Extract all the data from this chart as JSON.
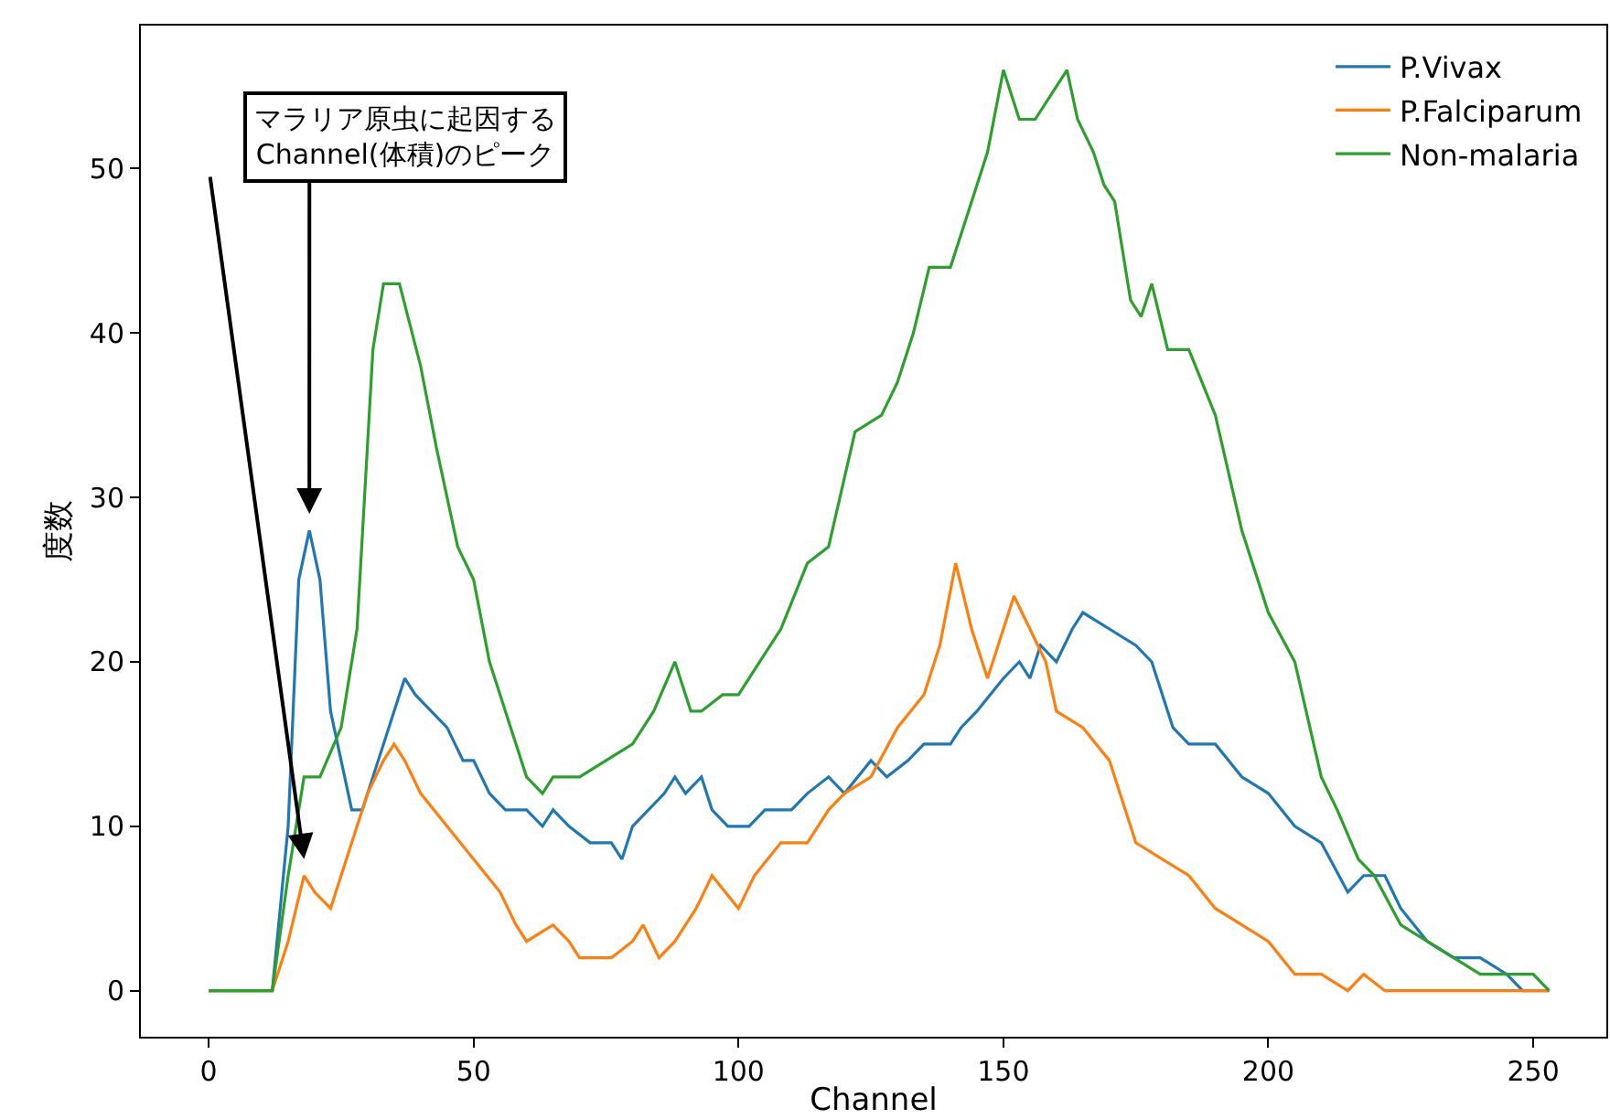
{
  "chart_data": {
    "type": "line",
    "xlabel": "Channel",
    "ylabel": "度数",
    "xlim": [
      -12.8,
      263.8
    ],
    "ylim": [
      -2.8,
      58.7
    ],
    "xticks": [
      0,
      50,
      100,
      150,
      200,
      250
    ],
    "yticks": [
      0,
      10,
      20,
      30,
      40,
      50
    ],
    "legend": "top right",
    "annotations": [
      "マラリア原虫に起因する\nChannel(体積)のピーク"
    ],
    "series": [
      {
        "name": "P.Vivax",
        "color": "#1f77b4",
        "x": [
          0,
          12,
          15,
          17,
          19,
          21,
          23,
          25,
          27,
          29,
          32,
          35,
          37,
          39,
          42,
          45,
          48,
          50,
          53,
          56,
          60,
          63,
          65,
          68,
          72,
          76,
          78,
          80,
          83,
          86,
          88,
          90,
          93,
          95,
          98,
          102,
          105,
          110,
          113,
          117,
          120,
          125,
          128,
          132,
          135,
          140,
          142,
          145,
          150,
          153,
          155,
          157,
          160,
          163,
          165,
          170,
          175,
          178,
          182,
          185,
          190,
          195,
          200,
          205,
          210,
          215,
          218,
          222,
          225,
          230,
          235,
          240,
          245,
          248,
          253
        ],
        "values": [
          0,
          0,
          10,
          25,
          28,
          25,
          17,
          14,
          11,
          11,
          14,
          17,
          19,
          18,
          17,
          16,
          14,
          14,
          12,
          11,
          11,
          10,
          11,
          10,
          9,
          9,
          8,
          10,
          11,
          12,
          13,
          12,
          13,
          11,
          10,
          10,
          11,
          11,
          12,
          13,
          12,
          14,
          13,
          14,
          15,
          15,
          16,
          17,
          19,
          20,
          19,
          21,
          20,
          22,
          23,
          22,
          21,
          20,
          16,
          15,
          15,
          13,
          12,
          10,
          9,
          6,
          7,
          7,
          5,
          3,
          2,
          2,
          1,
          0,
          0
        ]
      },
      {
        "name": "P.Falciparum",
        "color": "#ff7f0e",
        "x": [
          0,
          12,
          15,
          18,
          20,
          23,
          26,
          30,
          33,
          35,
          37,
          40,
          45,
          50,
          55,
          58,
          60,
          65,
          68,
          70,
          76,
          80,
          82,
          85,
          88,
          92,
          95,
          100,
          103,
          108,
          113,
          117,
          120,
          125,
          130,
          135,
          138,
          141,
          144,
          147,
          150,
          152,
          155,
          158,
          160,
          165,
          170,
          175,
          180,
          185,
          190,
          195,
          200,
          205,
          210,
          215,
          218,
          222,
          230,
          253
        ],
        "values": [
          0,
          0,
          3,
          7,
          6,
          5,
          8,
          12,
          14,
          15,
          14,
          12,
          10,
          8,
          6,
          4,
          3,
          4,
          3,
          2,
          2,
          3,
          4,
          2,
          3,
          5,
          7,
          5,
          7,
          9,
          9,
          11,
          12,
          13,
          16,
          18,
          21,
          26,
          22,
          19,
          22,
          24,
          22,
          20,
          17,
          16,
          14,
          9,
          8,
          7,
          5,
          4,
          3,
          1,
          1,
          0,
          1,
          0,
          0,
          0
        ]
      },
      {
        "name": "Non-malaria",
        "color": "#2ca02c",
        "x": [
          0,
          12,
          15,
          18,
          21,
          25,
          28,
          31,
          33,
          36,
          40,
          43,
          47,
          50,
          53,
          56,
          60,
          63,
          65,
          70,
          75,
          80,
          84,
          88,
          91,
          93,
          97,
          100,
          104,
          108,
          113,
          117,
          122,
          127,
          130,
          133,
          136,
          140,
          143,
          147,
          150,
          153,
          156,
          160,
          162,
          164,
          167,
          169,
          171,
          174,
          176,
          178,
          181,
          185,
          190,
          195,
          200,
          205,
          210,
          213,
          217,
          220,
          225,
          230,
          235,
          240,
          245,
          250,
          253
        ],
        "values": [
          0,
          0,
          7,
          13,
          13,
          16,
          22,
          39,
          43,
          43,
          38,
          33,
          27,
          25,
          20,
          17,
          13,
          12,
          13,
          13,
          14,
          15,
          17,
          20,
          17,
          17,
          18,
          18,
          20,
          22,
          26,
          27,
          34,
          35,
          37,
          40,
          44,
          44,
          47,
          51,
          56,
          53,
          53,
          55,
          56,
          53,
          51,
          49,
          48,
          42,
          41,
          43,
          39,
          39,
          35,
          28,
          23,
          20,
          13,
          11,
          8,
          7,
          4,
          3,
          2,
          1,
          1,
          1,
          0
        ]
      }
    ]
  }
}
